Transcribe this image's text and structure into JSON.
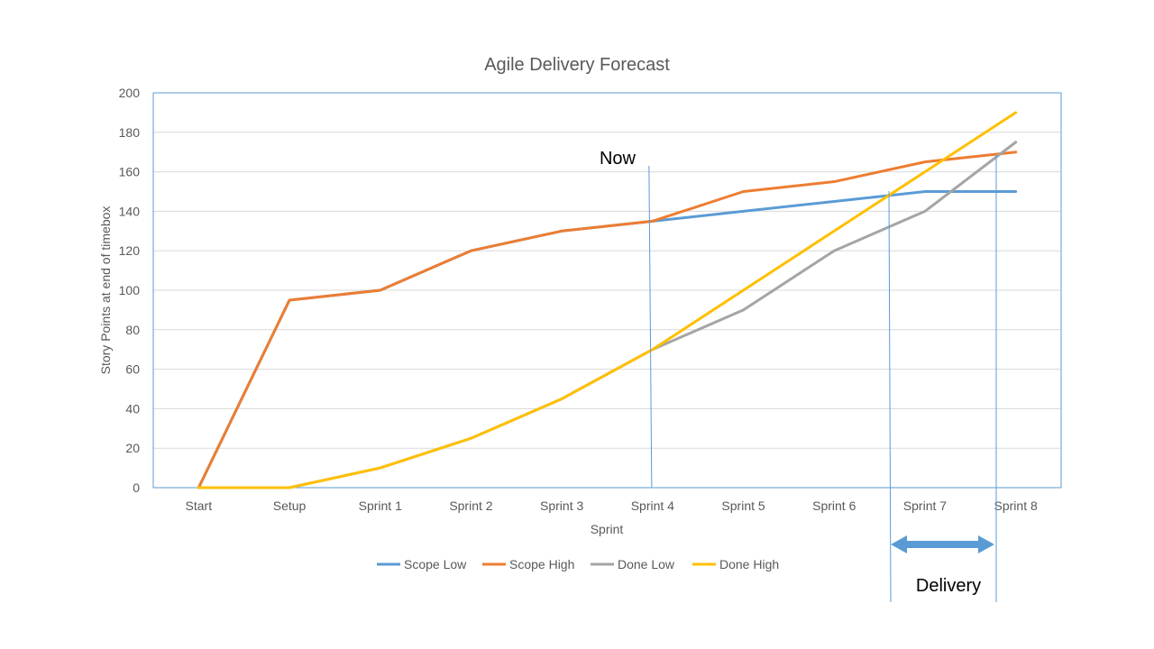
{
  "chart_data": {
    "type": "line",
    "title": "Agile Delivery Forecast",
    "xlabel": "Sprint",
    "ylabel": "Story Points at end of timebox",
    "categories": [
      "Start",
      "Setup",
      "Sprint 1",
      "Sprint 2",
      "Sprint 3",
      "Sprint 4",
      "Sprint 5",
      "Sprint 6",
      "Sprint 7",
      "Sprint 8"
    ],
    "ylim": [
      0,
      200
    ],
    "yticks": [
      0,
      20,
      40,
      60,
      80,
      100,
      120,
      140,
      160,
      180,
      200
    ],
    "grid": true,
    "legend_position": "bottom",
    "series": [
      {
        "name": "Scope Low",
        "color": "#5b9bd5",
        "values": [
          0,
          95,
          100,
          120,
          130,
          135,
          140,
          145,
          150,
          150
        ]
      },
      {
        "name": "Scope High",
        "color": "#ed7d31",
        "values": [
          0,
          95,
          100,
          120,
          130,
          135,
          150,
          155,
          165,
          170
        ]
      },
      {
        "name": "Done Low",
        "color": "#a5a5a5",
        "values": [
          0,
          0,
          10,
          25,
          45,
          70,
          90,
          120,
          140,
          175
        ]
      },
      {
        "name": "Done High",
        "color": "#ffc000",
        "values": [
          0,
          0,
          10,
          25,
          45,
          70,
          100,
          130,
          160,
          190
        ]
      }
    ],
    "annotations": {
      "now_label": "Now",
      "delivery_label": "Delivery"
    }
  },
  "colors": {
    "axis": "#5b9bd5",
    "grid": "#d9d9d9",
    "text": "#595959",
    "arrow": "#5b9bd5"
  }
}
